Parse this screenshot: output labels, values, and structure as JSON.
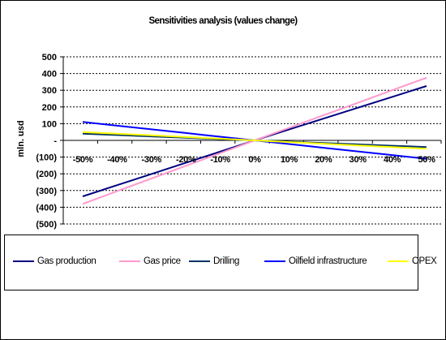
{
  "chart_data": {
    "type": "line",
    "title": "Sensitivities analysis (values change)",
    "ylabel": "mln. usd",
    "xlabel": "",
    "categories": [
      "-50%",
      "-40%",
      "-30%",
      "-20%",
      "-10%",
      "0%",
      "10%",
      "20%",
      "30%",
      "40%",
      "50%"
    ],
    "y_tick_labels": [
      "500",
      "400",
      "300",
      "200",
      "100",
      "-",
      "(100)",
      "(200)",
      "(300)",
      "(400)",
      "(500)"
    ],
    "y_ticks": [
      500,
      400,
      300,
      200,
      100,
      0,
      -100,
      -200,
      -300,
      -400,
      -500
    ],
    "ylim": [
      -500,
      500
    ],
    "grid": true,
    "legend_position": "bottom",
    "series": [
      {
        "name": "Gas production",
        "color": "#000080",
        "values": [
          -335,
          -268,
          -201,
          -134,
          -67,
          0,
          65,
          130,
          195,
          260,
          325
        ]
      },
      {
        "name": "Gas price",
        "color": "#FF99CC",
        "values": [
          -380,
          -304,
          -228,
          -152,
          -76,
          0,
          75,
          150,
          225,
          300,
          375
        ]
      },
      {
        "name": "Drilling",
        "color": "#003366",
        "values": [
          40,
          32,
          24,
          16,
          8,
          0,
          -8,
          -16,
          -24,
          -32,
          -40
        ]
      },
      {
        "name": "Oilfield infrastructure",
        "color": "#0000FF",
        "values": [
          110,
          88,
          66,
          44,
          22,
          0,
          -22,
          -44,
          -66,
          -88,
          -110
        ]
      },
      {
        "name": "OPEX",
        "color": "#FFFF00",
        "values": [
          50,
          40,
          30,
          20,
          10,
          0,
          -10,
          -20,
          -30,
          -40,
          -50
        ]
      }
    ]
  }
}
